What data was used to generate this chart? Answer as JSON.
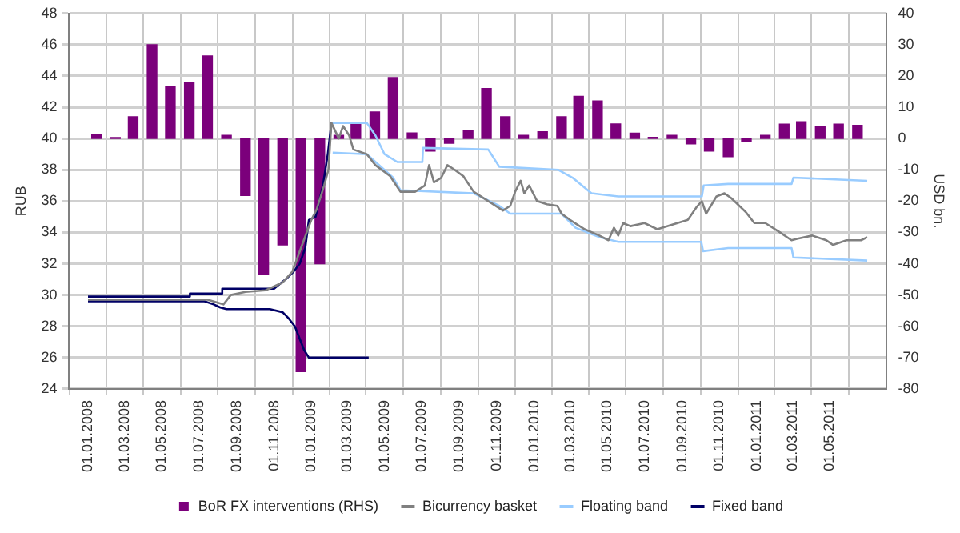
{
  "chart_data": {
    "type": "line",
    "ylabel": "RUB",
    "y2label": "USD bn.",
    "xlim": [
      "2008-01-01",
      "2011-07-01"
    ],
    "xticks": [
      {
        "value": "2008-01-01",
        "label": "01.01.2008"
      },
      {
        "value": "2008-03-01",
        "label": "01.03.2008"
      },
      {
        "value": "2008-05-01",
        "label": "01.05.2008"
      },
      {
        "value": "2008-07-01",
        "label": "01.07.2008"
      },
      {
        "value": "2008-09-01",
        "label": "01.09.2008"
      },
      {
        "value": "2008-11-01",
        "label": "01.11.2008"
      },
      {
        "value": "2009-01-01",
        "label": "01.01.2009"
      },
      {
        "value": "2009-03-01",
        "label": "01.03.2009"
      },
      {
        "value": "2009-05-01",
        "label": "01.05.2009"
      },
      {
        "value": "2009-07-01",
        "label": "01.07.2009"
      },
      {
        "value": "2009-09-01",
        "label": "01.09.2009"
      },
      {
        "value": "2009-11-01",
        "label": "01.11.2009"
      },
      {
        "value": "2010-01-01",
        "label": "01.01.2010"
      },
      {
        "value": "2010-03-01",
        "label": "01.03.2010"
      },
      {
        "value": "2010-05-01",
        "label": "01.05.2010"
      },
      {
        "value": "2010-07-01",
        "label": "01.07.2010"
      },
      {
        "value": "2010-09-01",
        "label": "01.09.2010"
      },
      {
        "value": "2010-11-01",
        "label": "01.11.2010"
      },
      {
        "value": "2011-01-01",
        "label": "01.01.2011"
      },
      {
        "value": "2011-03-01",
        "label": "01.03.2011"
      },
      {
        "value": "2011-05-01",
        "label": "01.05.2011"
      }
    ],
    "ylim": [
      24,
      48
    ],
    "yticks": [
      24,
      26,
      28,
      30,
      32,
      34,
      36,
      38,
      40,
      42,
      44,
      46,
      48
    ],
    "y2lim": [
      -80,
      40
    ],
    "y2ticks": [
      -80,
      -70,
      -60,
      -50,
      -40,
      -30,
      -20,
      -10,
      0,
      10,
      20,
      30,
      40
    ],
    "grid": true,
    "legend": "bottom",
    "series": [
      {
        "name": "BoR FX interventions (RHS)",
        "type": "bar",
        "axis": "y2",
        "color": "#7b007b",
        "x": [
          "2008-01-15",
          "2008-02-15",
          "2008-03-15",
          "2008-04-15",
          "2008-05-15",
          "2008-06-15",
          "2008-07-15",
          "2008-08-15",
          "2008-09-15",
          "2008-10-15",
          "2008-11-15",
          "2008-12-15",
          "2009-01-15",
          "2009-02-15",
          "2009-03-15",
          "2009-04-15",
          "2009-05-15",
          "2009-06-15",
          "2009-07-15",
          "2009-08-15",
          "2009-09-15",
          "2009-10-15",
          "2009-11-15",
          "2009-12-15",
          "2010-01-15",
          "2010-02-15",
          "2010-03-15",
          "2010-04-15",
          "2010-05-15",
          "2010-06-15",
          "2010-07-15",
          "2010-08-15",
          "2010-09-15",
          "2010-10-15",
          "2010-11-15",
          "2010-12-15",
          "2011-01-15",
          "2011-02-15",
          "2011-03-15",
          "2011-04-15",
          "2011-05-15",
          "2011-06-15"
        ],
        "values": [
          1.2,
          0.3,
          7,
          30,
          16.6,
          18,
          26.4,
          1,
          -18.2,
          -43.5,
          -34,
          -74.5,
          -40,
          1,
          5,
          8.5,
          19.5,
          1.8,
          -4,
          -1.5,
          2.7,
          16,
          7,
          1,
          2.2,
          7,
          13.5,
          12,
          4.7,
          1.7,
          0.4,
          1,
          -1.7,
          -4,
          -5.8,
          -1,
          1,
          4.6,
          5.4,
          3.7,
          4.6,
          4.2
        ]
      },
      {
        "name": "Bicurrency basket",
        "color": "#808080",
        "x": [
          "2008-01-01",
          "2008-07-15",
          "2008-08-10",
          "2008-08-22",
          "2008-09-15",
          "2008-10-18",
          "2008-11-15",
          "2008-12-01",
          "2008-12-15",
          "2009-01-01",
          "2009-01-10",
          "2009-01-22",
          "2009-01-29",
          "2009-02-03",
          "2009-02-15",
          "2009-02-22",
          "2009-03-04",
          "2009-03-11",
          "2009-04-02",
          "2009-04-16",
          "2009-05-10",
          "2009-05-27",
          "2009-06-20",
          "2009-07-06",
          "2009-07-13",
          "2009-07-21",
          "2009-08-02",
          "2009-08-12",
          "2009-08-24",
          "2009-09-07",
          "2009-09-24",
          "2009-10-18",
          "2009-11-11",
          "2009-11-23",
          "2009-12-01",
          "2009-12-10",
          "2009-12-16",
          "2009-12-24",
          "2010-01-06",
          "2010-01-22",
          "2010-02-08",
          "2010-02-15",
          "2010-03-01",
          "2010-03-25",
          "2010-04-18",
          "2010-05-03",
          "2010-05-12",
          "2010-05-19",
          "2010-05-27",
          "2010-06-08",
          "2010-07-01",
          "2010-07-22",
          "2010-08-24",
          "2010-09-10",
          "2010-09-24",
          "2010-10-03",
          "2010-10-10",
          "2010-10-27",
          "2010-11-09",
          "2010-11-20",
          "2010-12-14",
          "2010-12-28",
          "2011-01-15",
          "2011-02-08",
          "2011-02-27",
          "2011-03-09",
          "2011-04-02",
          "2011-04-25",
          "2011-05-06",
          "2011-05-28",
          "2011-06-21",
          "2011-07-01"
        ],
        "values": [
          29.7,
          29.7,
          29.4,
          30,
          30.2,
          30.3,
          30.8,
          31.5,
          33,
          34.8,
          35.5,
          37,
          38,
          41,
          40,
          40.8,
          40.2,
          39.3,
          39,
          38.3,
          37.6,
          36.6,
          36.6,
          37,
          38.3,
          37.2,
          37.5,
          38.3,
          38,
          37.6,
          36.6,
          36,
          35.4,
          35.7,
          36.6,
          37.3,
          36.5,
          37,
          36,
          35.8,
          35.7,
          35.2,
          34.8,
          34.2,
          33.8,
          33.5,
          34.3,
          33.8,
          34.6,
          34.4,
          34.6,
          34.2,
          34.6,
          34.8,
          35.6,
          36,
          35.2,
          36.3,
          36.5,
          36.2,
          35.3,
          34.6,
          34.6,
          34,
          33.5,
          33.6,
          33.8,
          33.5,
          33.2,
          33.5,
          33.5,
          33.7
        ]
      },
      {
        "name": "Floating band",
        "color": "#99ccff",
        "x": [
          "2009-02-03",
          "2009-04-02",
          "2009-04-16",
          "2009-05-01",
          "2009-05-22",
          "2009-07-02",
          "2009-07-03",
          "2009-10-18",
          "2009-11-05",
          "2010-02-10",
          "2010-03-05",
          "2010-04-05",
          "2010-05-19",
          "2010-10-03",
          "2010-10-06",
          "2010-11-15",
          "2011-02-27",
          "2011-03-02",
          "2011-07-01"
        ],
        "values": [
          41,
          41,
          40.2,
          39,
          38.5,
          38.5,
          39.4,
          39.3,
          38.2,
          38,
          37.5,
          36.5,
          36.3,
          36.3,
          37,
          37.1,
          37.1,
          37.5,
          37.3
        ]
      },
      {
        "color": "#99ccff",
        "x": [
          "2009-02-05",
          "2009-04-02",
          "2009-05-15",
          "2009-05-27",
          "2009-09-24",
          "2009-11-05",
          "2009-11-23",
          "2010-02-15",
          "2010-03-10",
          "2010-04-18",
          "2010-05-19",
          "2010-10-02",
          "2010-10-05",
          "2010-11-15",
          "2011-02-27",
          "2011-03-02",
          "2011-07-01"
        ],
        "values": [
          39.1,
          39,
          37.5,
          36.7,
          36.5,
          35.7,
          35.2,
          35.2,
          34.3,
          33.7,
          33.4,
          33.4,
          32.8,
          33,
          33,
          32.4,
          32.2
        ]
      },
      {
        "name": "Fixed band",
        "color": "#000066",
        "x": [
          "2008-01-01",
          "2008-06-15",
          "2008-06-16",
          "2008-08-07",
          "2008-08-08",
          "2008-11-01",
          "2008-11-10",
          "2008-11-20",
          "2008-12-03",
          "2008-12-13",
          "2008-12-22",
          "2008-12-28",
          "2009-01-08",
          "2009-01-20",
          "2009-01-28",
          "2009-02-03",
          "2009-04-02"
        ],
        "values": [
          29.9,
          29.9,
          30.1,
          30.1,
          30.4,
          30.4,
          30.7,
          31,
          31.5,
          32,
          33,
          34.8,
          35,
          37,
          39,
          41,
          41
        ]
      },
      {
        "color": "#000066",
        "x": [
          "2008-01-01",
          "2008-07-10",
          "2008-07-25",
          "2008-08-05",
          "2008-08-15",
          "2008-10-25",
          "2008-11-15",
          "2008-11-25",
          "2008-12-05",
          "2008-12-10",
          "2008-12-20",
          "2008-12-28",
          "2009-04-05"
        ],
        "values": [
          29.6,
          29.6,
          29.4,
          29.2,
          29.1,
          29.1,
          28.9,
          28.5,
          28,
          27.5,
          26.5,
          26,
          26
        ]
      }
    ]
  }
}
